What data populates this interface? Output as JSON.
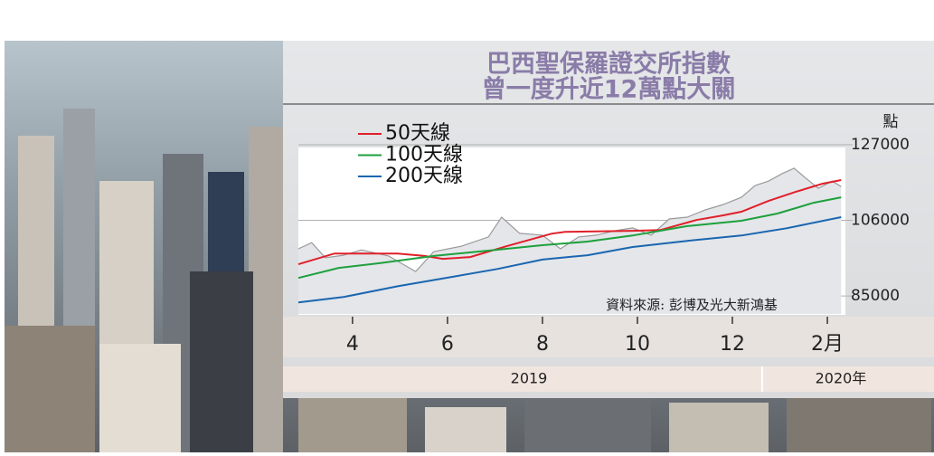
{
  "chart_data": {
    "type": "line",
    "title_lines": [
      "巴西聖保羅證交所指數",
      "曾一度升近12萬點大關"
    ],
    "y_unit": "點",
    "source": "資料來源: 彭博及光大新鴻基",
    "year_labels": [
      "2019",
      "2020年"
    ],
    "legend": "upper-left",
    "grid": true,
    "xlim": [
      2.86,
      14.38
    ],
    "xticks": [
      4,
      6,
      8,
      10,
      12,
      {
        "value": 14,
        "label": "2月"
      }
    ],
    "ylim": [
      80000,
      127000
    ],
    "yticks": [
      85000,
      106000,
      127000
    ],
    "index": {
      "color": "#9a9a9a",
      "x": [
        2.86,
        3.14,
        3.43,
        3.81,
        4.19,
        4.76,
        5.33,
        5.71,
        6.29,
        6.86,
        7.14,
        7.52,
        8.0,
        8.38,
        8.76,
        9.14,
        9.52,
        9.9,
        10.29,
        10.67,
        11.05,
        11.43,
        11.81,
        12.19,
        12.48,
        12.76,
        13.05,
        13.3,
        13.52,
        13.81,
        14.1,
        14.29
      ],
      "values": [
        98100,
        99800,
        95600,
        96300,
        97800,
        96100,
        91800,
        97300,
        98800,
        101400,
        106900,
        102400,
        101900,
        98100,
        101400,
        101900,
        103100,
        103900,
        101900,
        106400,
        106900,
        108900,
        110400,
        112400,
        115700,
        116900,
        119000,
        120500,
        118000,
        114900,
        116900,
        115400
      ]
    },
    "series": [
      {
        "name": "50天線",
        "color": "#e0202a",
        "x": [
          2.86,
          3.62,
          4.95,
          5.52,
          5.9,
          6.48,
          7.24,
          8.19,
          8.48,
          9.9,
          10.48,
          11.24,
          11.81,
          12.19,
          12.76,
          13.33,
          13.9,
          14.29
        ],
        "values": [
          93800,
          96800,
          96800,
          96100,
          95300,
          95800,
          98800,
          102300,
          102800,
          103100,
          103300,
          106100,
          107400,
          108400,
          111400,
          113900,
          116200,
          117200
        ]
      },
      {
        "name": "100天線",
        "color": "#1ea03c",
        "x": [
          2.86,
          3.71,
          4.57,
          5.71,
          6.86,
          8.0,
          8.95,
          9.9,
          11.05,
          12.19,
          12.95,
          13.71,
          14.29
        ],
        "values": [
          90000,
          92800,
          94100,
          96100,
          97600,
          99100,
          100100,
          101800,
          104400,
          105900,
          107900,
          110900,
          112400
        ]
      },
      {
        "name": "200天線",
        "color": "#1a66b0",
        "x": [
          2.86,
          3.81,
          4.95,
          6.1,
          7.05,
          8.0,
          8.95,
          9.9,
          11.05,
          12.19,
          13.14,
          14.29
        ],
        "values": [
          83200,
          84700,
          87700,
          90300,
          92500,
          95100,
          96300,
          98600,
          100300,
          101800,
          103800,
          106900
        ]
      }
    ]
  }
}
